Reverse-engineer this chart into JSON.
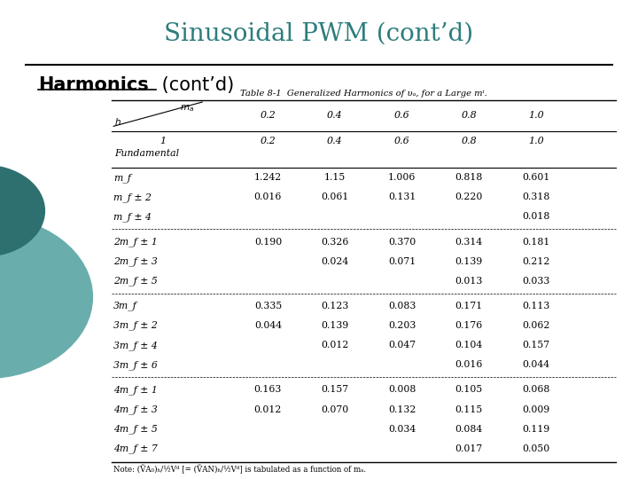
{
  "title": "Sinusoidal PWM (cont’d)",
  "subtitle": "Harmonics",
  "subtitle2": " (cont’d)",
  "table_title": "Table 8-1  Generalized Harmonics of v_{A}, for a Large m_{f}.",
  "bg_color": "#ffffff",
  "title_color": "#2e7d7d",
  "subtitle_color": "#000000",
  "header_row": [
    "h",
    "0.2",
    "0.4",
    "0.6",
    "0.8",
    "1.0"
  ],
  "row1_label": "1",
  "row1_values": [
    "0.2",
    "0.4",
    "0.6",
    "0.8",
    "1.0"
  ],
  "groups": [
    {
      "rows": [
        [
          "m_f",
          "1.242",
          "1.15",
          "1.006",
          "0.818",
          "0.601"
        ],
        [
          "m_f ± 2",
          "0.016",
          "0.061",
          "0.131",
          "0.220",
          "0.318"
        ],
        [
          "m_f ± 4",
          "",
          "",
          "",
          "",
          "0.018"
        ]
      ]
    },
    {
      "rows": [
        [
          "2m_f ± 1",
          "0.190",
          "0.326",
          "0.370",
          "0.314",
          "0.181"
        ],
        [
          "2m_f ± 3",
          "",
          "0.024",
          "0.071",
          "0.139",
          "0.212"
        ],
        [
          "2m_f ± 5",
          "",
          "",
          "",
          "0.013",
          "0.033"
        ]
      ]
    },
    {
      "rows": [
        [
          "3m_f",
          "0.335",
          "0.123",
          "0.083",
          "0.171",
          "0.113"
        ],
        [
          "3m_f ± 2",
          "0.044",
          "0.139",
          "0.203",
          "0.176",
          "0.062"
        ],
        [
          "3m_f ± 4",
          "",
          "0.012",
          "0.047",
          "0.104",
          "0.157"
        ],
        [
          "3m_f ± 6",
          "",
          "",
          "",
          "0.016",
          "0.044"
        ]
      ]
    },
    {
      "rows": [
        [
          "4m_f ± 1",
          "0.163",
          "0.157",
          "0.008",
          "0.105",
          "0.068"
        ],
        [
          "4m_f ± 3",
          "0.012",
          "0.070",
          "0.132",
          "0.115",
          "0.009"
        ],
        [
          "4m_f ± 5",
          "",
          "",
          "0.034",
          "0.084",
          "0.119"
        ],
        [
          "4m_f ± 7",
          "",
          "",
          "",
          "0.017",
          "0.050"
        ]
      ]
    }
  ],
  "note": "Note: (V̂_{Ao})_h / (1/2) V_d  [= (V̂_{AN})_h / (1/2) V_d]  is tabulated as a function of m_a.",
  "circle1_color": "#6aadad",
  "circle2_color": "#2e7070"
}
